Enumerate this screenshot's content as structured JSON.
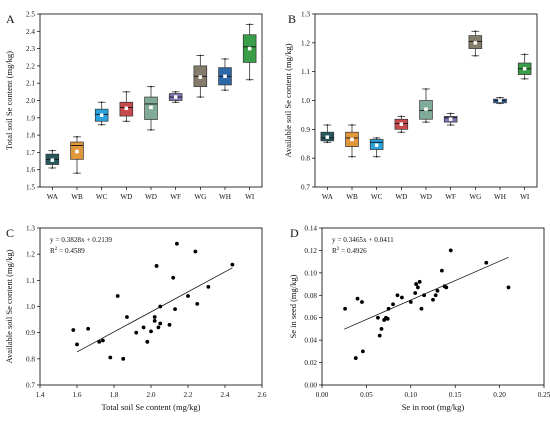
{
  "chart_data": [
    {
      "panel": "A",
      "type": "box",
      "ylabel": "Total soil Se content (mg/kg)",
      "categories": [
        "WA",
        "WB",
        "WC",
        "WD",
        "WD",
        "WF",
        "WG",
        "WH",
        "WI"
      ],
      "ylim": [
        1.5,
        2.5
      ],
      "yticks": [
        1.5,
        1.6,
        1.7,
        1.8,
        1.9,
        2.0,
        2.1,
        2.2,
        2.3,
        2.4,
        2.5
      ],
      "boxes": [
        {
          "min": 1.61,
          "q1": 1.63,
          "median": 1.66,
          "q3": 1.69,
          "max": 1.71,
          "mean": 1.655,
          "color": "#27595f"
        },
        {
          "min": 1.58,
          "q1": 1.66,
          "median": 1.74,
          "q3": 1.76,
          "max": 1.79,
          "mean": 1.705,
          "color": "#e0963b"
        },
        {
          "min": 1.86,
          "q1": 1.88,
          "median": 1.92,
          "q3": 1.95,
          "max": 1.99,
          "mean": 1.915,
          "color": "#2aa3dc"
        },
        {
          "min": 1.88,
          "q1": 1.91,
          "median": 1.96,
          "q3": 1.99,
          "max": 2.05,
          "mean": 1.955,
          "color": "#c94a4c"
        },
        {
          "min": 1.83,
          "q1": 1.89,
          "median": 1.98,
          "q3": 2.02,
          "max": 2.08,
          "mean": 1.96,
          "color": "#7fab98"
        },
        {
          "min": 1.99,
          "q1": 2.0,
          "median": 2.02,
          "q3": 2.04,
          "max": 2.05,
          "mean": 2.02,
          "color": "#7c74b2"
        },
        {
          "min": 2.02,
          "q1": 2.08,
          "median": 2.14,
          "q3": 2.2,
          "max": 2.26,
          "mean": 2.135,
          "color": "#857d6b"
        },
        {
          "min": 2.06,
          "q1": 2.09,
          "median": 2.14,
          "q3": 2.19,
          "max": 2.24,
          "mean": 2.14,
          "color": "#2e67a8"
        },
        {
          "min": 2.12,
          "q1": 2.22,
          "median": 2.31,
          "q3": 2.38,
          "max": 2.44,
          "mean": 2.3,
          "color": "#3a9d48"
        }
      ]
    },
    {
      "panel": "B",
      "type": "box",
      "ylabel": "Available soil Se content (mg/kg)",
      "categories": [
        "WA",
        "WB",
        "WC",
        "WD",
        "WD",
        "WF",
        "WG",
        "WH",
        "WI"
      ],
      "ylim": [
        0.7,
        1.3
      ],
      "yticks": [
        0.7,
        0.8,
        0.9,
        1.0,
        1.1,
        1.2,
        1.3
      ],
      "boxes": [
        {
          "min": 0.855,
          "q1": 0.86,
          "median": 0.87,
          "q3": 0.89,
          "max": 0.915,
          "mean": 0.873,
          "color": "#27595f"
        },
        {
          "min": 0.805,
          "q1": 0.84,
          "median": 0.87,
          "q3": 0.89,
          "max": 0.915,
          "mean": 0.865,
          "color": "#e0963b"
        },
        {
          "min": 0.805,
          "q1": 0.83,
          "median": 0.855,
          "q3": 0.865,
          "max": 0.87,
          "mean": 0.845,
          "color": "#2aa3dc"
        },
        {
          "min": 0.89,
          "q1": 0.9,
          "median": 0.92,
          "q3": 0.935,
          "max": 0.945,
          "mean": 0.918,
          "color": "#c94a4c"
        },
        {
          "min": 0.925,
          "q1": 0.935,
          "median": 0.965,
          "q3": 1.0,
          "max": 1.04,
          "mean": 0.97,
          "color": "#7fab98"
        },
        {
          "min": 0.915,
          "q1": 0.925,
          "median": 0.94,
          "q3": 0.945,
          "max": 0.955,
          "mean": 0.935,
          "color": "#7c74b2"
        },
        {
          "min": 1.155,
          "q1": 1.18,
          "median": 1.205,
          "q3": 1.225,
          "max": 1.24,
          "mean": 1.2,
          "color": "#857d6b"
        },
        {
          "min": 0.99,
          "q1": 0.992,
          "median": 1.0,
          "q3": 1.005,
          "max": 1.01,
          "mean": 1.0,
          "color": "#2e67a8"
        },
        {
          "min": 1.075,
          "q1": 1.09,
          "median": 1.11,
          "q3": 1.13,
          "max": 1.16,
          "mean": 1.11,
          "color": "#3a9d48"
        }
      ]
    },
    {
      "panel": "C",
      "type": "scatter",
      "xlabel": "Total soil Se content (mg/kg)",
      "ylabel": "Available soil Se content (mg/kg)",
      "xlim": [
        1.4,
        2.6
      ],
      "ylim": [
        0.7,
        1.3
      ],
      "xticks": [
        1.4,
        1.6,
        1.8,
        2.0,
        2.2,
        2.4,
        2.6
      ],
      "yticks": [
        0.7,
        0.8,
        0.9,
        1.0,
        1.1,
        1.2,
        1.3
      ],
      "equation": "y = 0.3828x + 0.2139",
      "r2_prefix": "R",
      "r2_sup": "2",
      "r2_value": " = 0.4589",
      "fit": {
        "slope": 0.3828,
        "intercept": 0.2139,
        "x0": 1.6,
        "x1": 2.44
      },
      "points": [
        [
          1.58,
          0.91
        ],
        [
          1.6,
          0.855
        ],
        [
          1.66,
          0.915
        ],
        [
          1.72,
          0.865
        ],
        [
          1.74,
          0.87
        ],
        [
          1.78,
          0.805
        ],
        [
          1.82,
          1.04
        ],
        [
          1.85,
          0.8
        ],
        [
          1.87,
          0.96
        ],
        [
          1.92,
          0.9
        ],
        [
          1.96,
          0.92
        ],
        [
          1.98,
          0.865
        ],
        [
          2.0,
          0.905
        ],
        [
          2.02,
          0.945
        ],
        [
          2.02,
          0.96
        ],
        [
          2.03,
          1.155
        ],
        [
          2.04,
          0.92
        ],
        [
          2.05,
          0.935
        ],
        [
          2.05,
          1.0
        ],
        [
          2.1,
          0.93
        ],
        [
          2.12,
          1.11
        ],
        [
          2.13,
          0.99
        ],
        [
          2.14,
          1.24
        ],
        [
          2.2,
          1.04
        ],
        [
          2.24,
          1.21
        ],
        [
          2.25,
          1.01
        ],
        [
          2.31,
          1.075
        ],
        [
          2.44,
          1.16
        ]
      ]
    },
    {
      "panel": "D",
      "type": "scatter",
      "xlabel": "Se in root (mg/kg)",
      "ylabel": "Se in seed (mg/kg)",
      "xlim": [
        0.0,
        0.25
      ],
      "ylim": [
        0.0,
        0.14
      ],
      "xticks": [
        0.0,
        0.05,
        0.1,
        0.15,
        0.2,
        0.25
      ],
      "xtick_labels": [
        "0.00",
        "0.05",
        "0.10",
        "0.15",
        "0.20",
        "0.25"
      ],
      "yticks": [
        0.0,
        0.02,
        0.04,
        0.06,
        0.08,
        0.1,
        0.12,
        0.14
      ],
      "ytick_labels": [
        "0.00",
        "0.02",
        "0.04",
        "0.06",
        "0.08",
        "0.10",
        "0.12",
        "0.14"
      ],
      "equation": "y = 0.3465x + 0.0411",
      "r2_prefix": "R",
      "r2_sup": "2",
      "r2_value": " = 0.4926",
      "fit": {
        "slope": 0.3465,
        "intercept": 0.0411,
        "x0": 0.025,
        "x1": 0.21
      },
      "points": [
        [
          0.026,
          0.068
        ],
        [
          0.038,
          0.024
        ],
        [
          0.04,
          0.077
        ],
        [
          0.045,
          0.074
        ],
        [
          0.046,
          0.03
        ],
        [
          0.063,
          0.06
        ],
        [
          0.065,
          0.044
        ],
        [
          0.067,
          0.05
        ],
        [
          0.07,
          0.058
        ],
        [
          0.072,
          0.06
        ],
        [
          0.074,
          0.059
        ],
        [
          0.075,
          0.068
        ],
        [
          0.08,
          0.072
        ],
        [
          0.085,
          0.08
        ],
        [
          0.09,
          0.078
        ],
        [
          0.1,
          0.074
        ],
        [
          0.105,
          0.082
        ],
        [
          0.106,
          0.09
        ],
        [
          0.108,
          0.087
        ],
        [
          0.11,
          0.092
        ],
        [
          0.112,
          0.068
        ],
        [
          0.115,
          0.08
        ],
        [
          0.125,
          0.076
        ],
        [
          0.128,
          0.08
        ],
        [
          0.13,
          0.084
        ],
        [
          0.135,
          0.102
        ],
        [
          0.138,
          0.088
        ],
        [
          0.14,
          0.087
        ],
        [
          0.145,
          0.12
        ],
        [
          0.185,
          0.109
        ],
        [
          0.21,
          0.087
        ]
      ]
    }
  ]
}
